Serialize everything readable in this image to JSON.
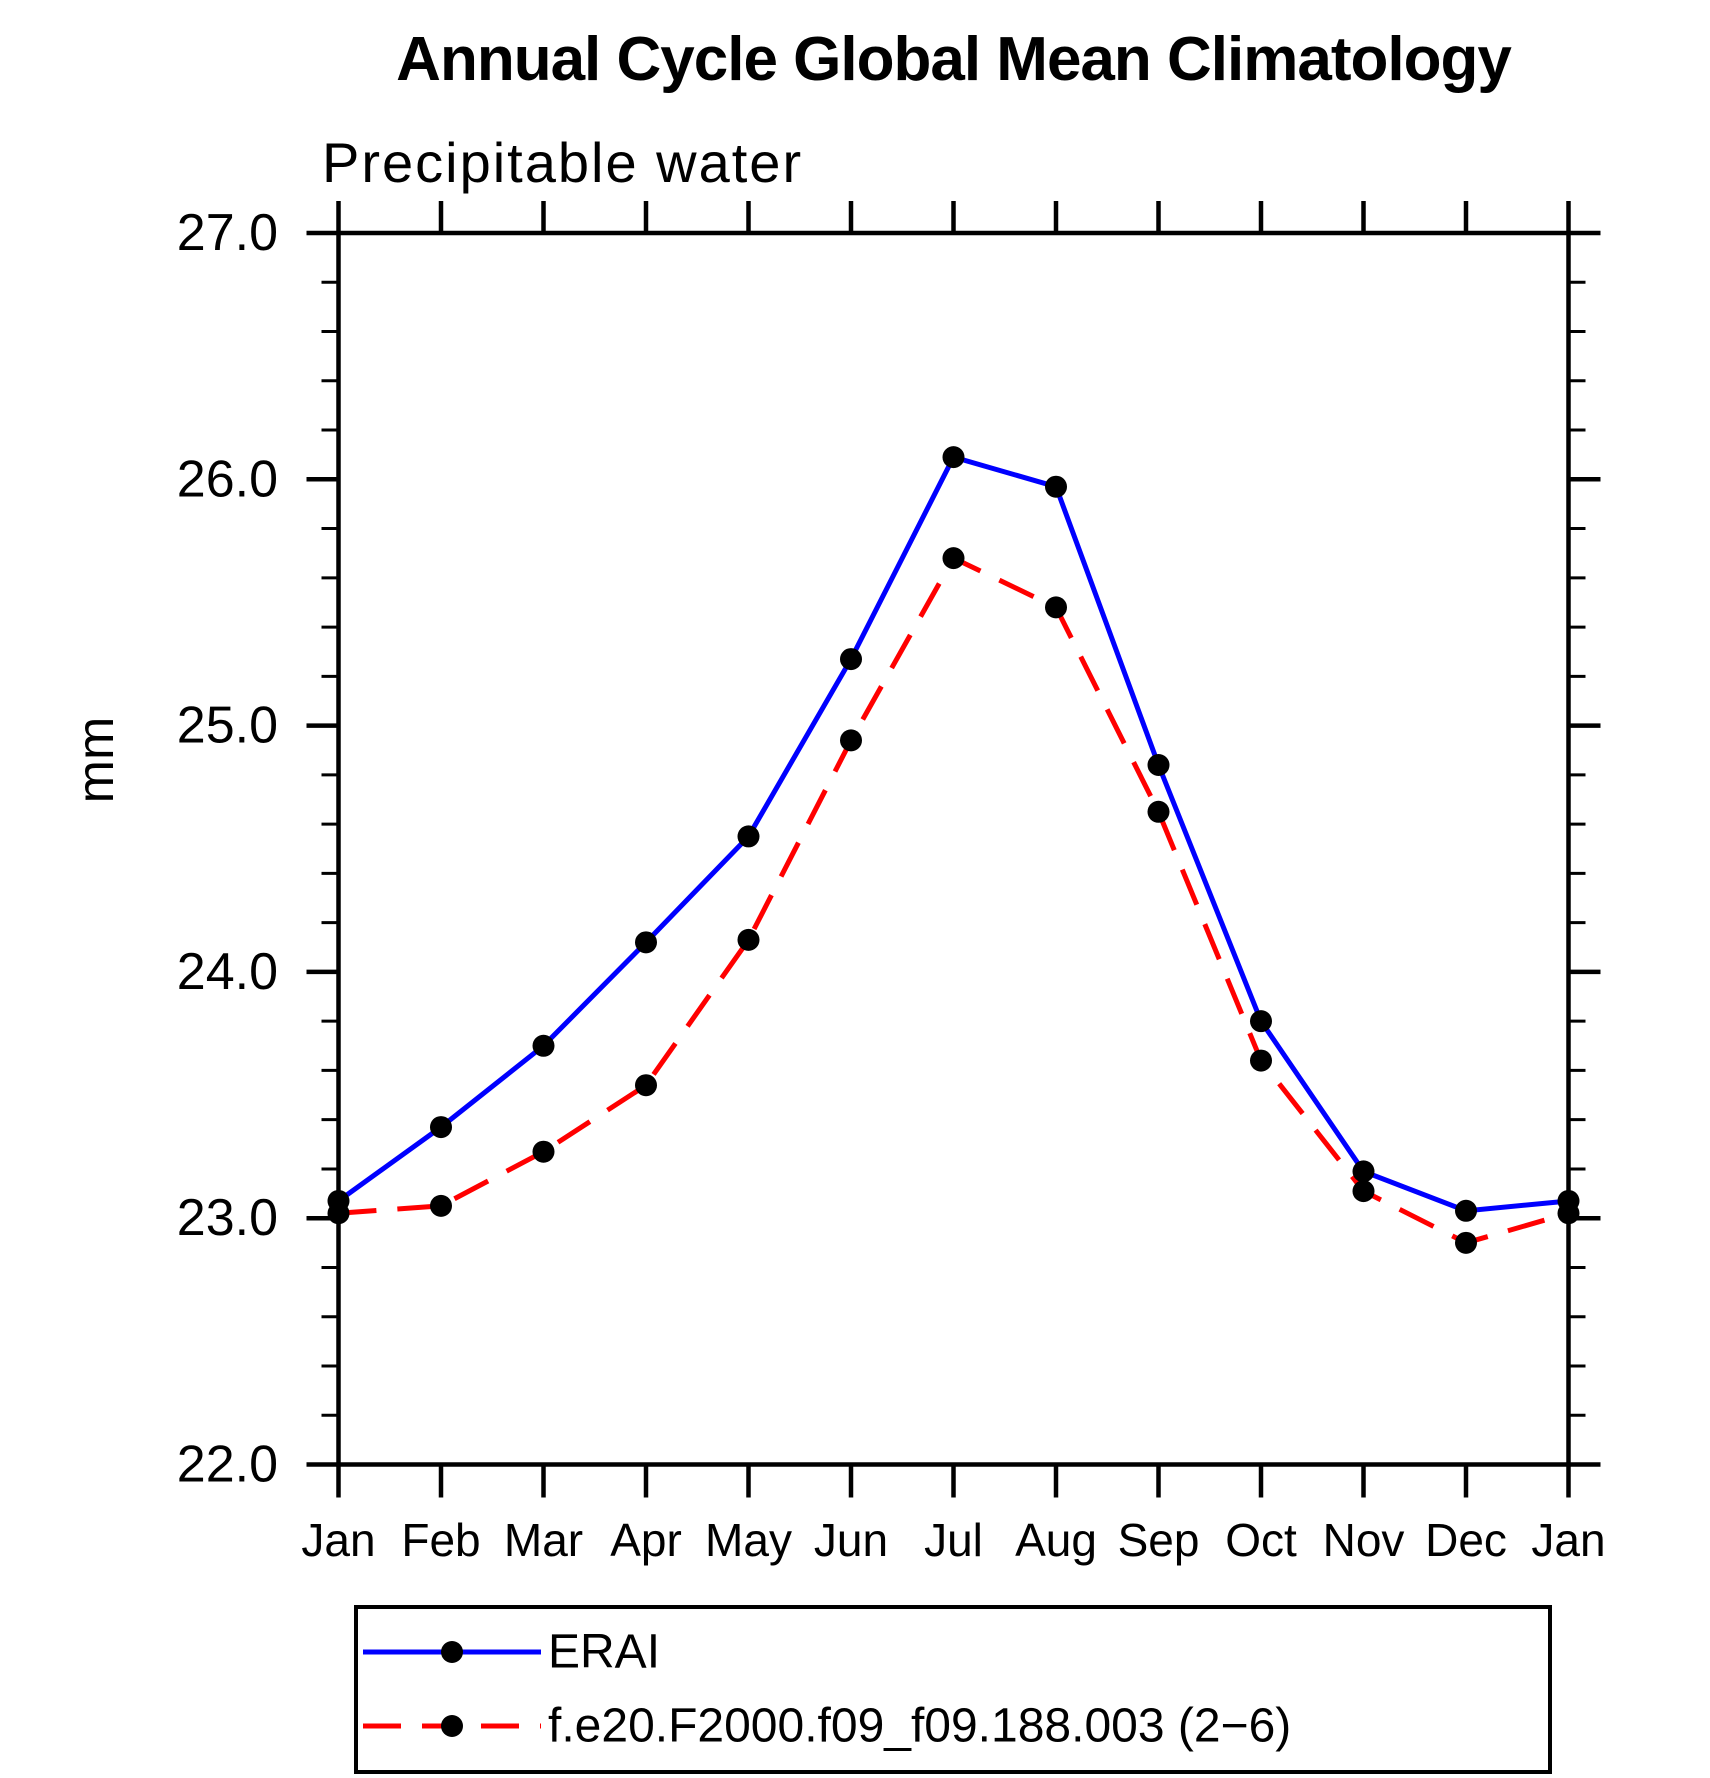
{
  "chart_data": {
    "type": "line",
    "title": "Annual Cycle Global Mean Climatology",
    "subtitle": "Precipitable water",
    "ylabel": "mm",
    "xlabel": "",
    "categories": [
      "Jan",
      "Feb",
      "Mar",
      "Apr",
      "May",
      "Jun",
      "Jul",
      "Aug",
      "Sep",
      "Oct",
      "Nov",
      "Dec",
      "Jan"
    ],
    "ylim": [
      22.0,
      27.0
    ],
    "ytick_interval": 1.0,
    "ytick_minor_interval": 0.2,
    "ytick_labels": [
      "22.0",
      "23.0",
      "24.0",
      "25.0",
      "26.0",
      "27.0"
    ],
    "grid": "off",
    "legend_position": "bottom",
    "marker_color": "#000000",
    "series": [
      {
        "name": "ERAI",
        "color": "#0000ff",
        "style": "solid",
        "marker": "circle",
        "values": [
          23.07,
          23.37,
          23.7,
          24.12,
          24.55,
          25.27,
          26.09,
          25.97,
          24.84,
          23.8,
          23.19,
          23.03,
          23.07
        ]
      },
      {
        "name": "f.e20.F2000.f09_f09.188.003 (2−6)",
        "color": "#ff0000",
        "style": "dashed",
        "marker": "circle",
        "values": [
          23.02,
          23.05,
          23.27,
          23.54,
          24.13,
          24.94,
          25.68,
          25.48,
          24.65,
          23.64,
          23.11,
          22.9,
          23.02
        ]
      }
    ]
  }
}
